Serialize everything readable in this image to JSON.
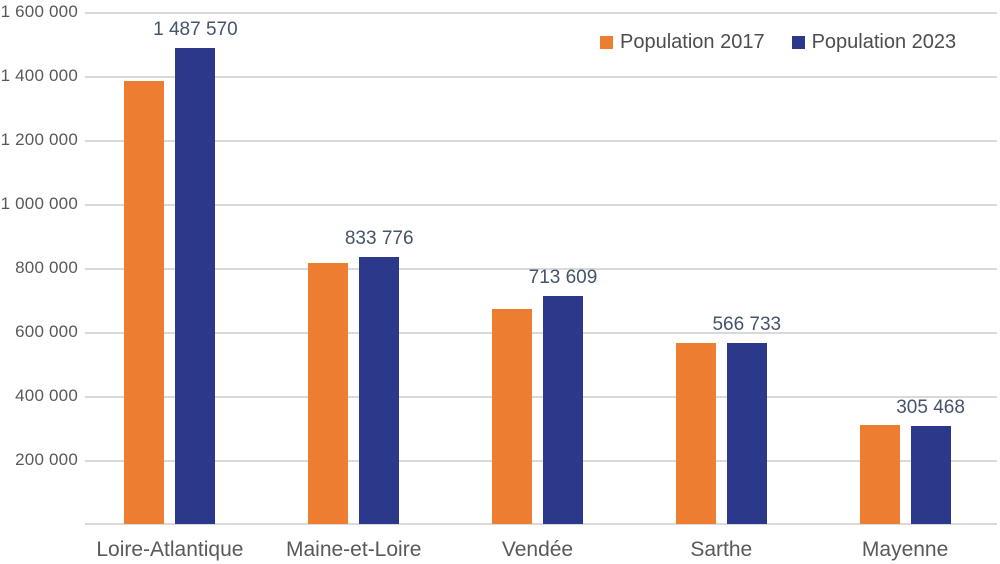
{
  "chart_data": {
    "type": "bar",
    "title": "",
    "xlabel": "",
    "ylabel": "",
    "categories": [
      "Loire-Atlantique",
      "Maine-et-Loire",
      "Vendée",
      "Sarthe",
      "Mayenne"
    ],
    "series": [
      {
        "name": "Population 2017",
        "color": "#ED7D31",
        "labeled": false,
        "values": [
          1384000,
          815000,
          672000,
          567000,
          309000
        ]
      },
      {
        "name": "Population 2023",
        "color": "#2C3889",
        "labeled": true,
        "values": [
          1487570,
          833776,
          713609,
          566733,
          305468
        ]
      }
    ],
    "data_labels": [
      "1 487 570",
      "833 776",
      "713 609",
      "566 733",
      "305 468"
    ],
    "y_axis": {
      "min": 0,
      "max": 1600000,
      "step": 200000,
      "tick_labels": [
        "1 600 000",
        "1 400 000",
        "1 200 000",
        "1 000 000",
        "800 000",
        "600 000",
        "400 000",
        "200 000"
      ]
    },
    "grid": true,
    "legend_position": "top-right"
  },
  "colors": {
    "background": "#FFFFFF",
    "gridline": "#D9D9D9",
    "axis_text": "#595959",
    "category_text": "#595959",
    "data_label_text": "#44546A",
    "legend_text": "#4D4D4D"
  }
}
